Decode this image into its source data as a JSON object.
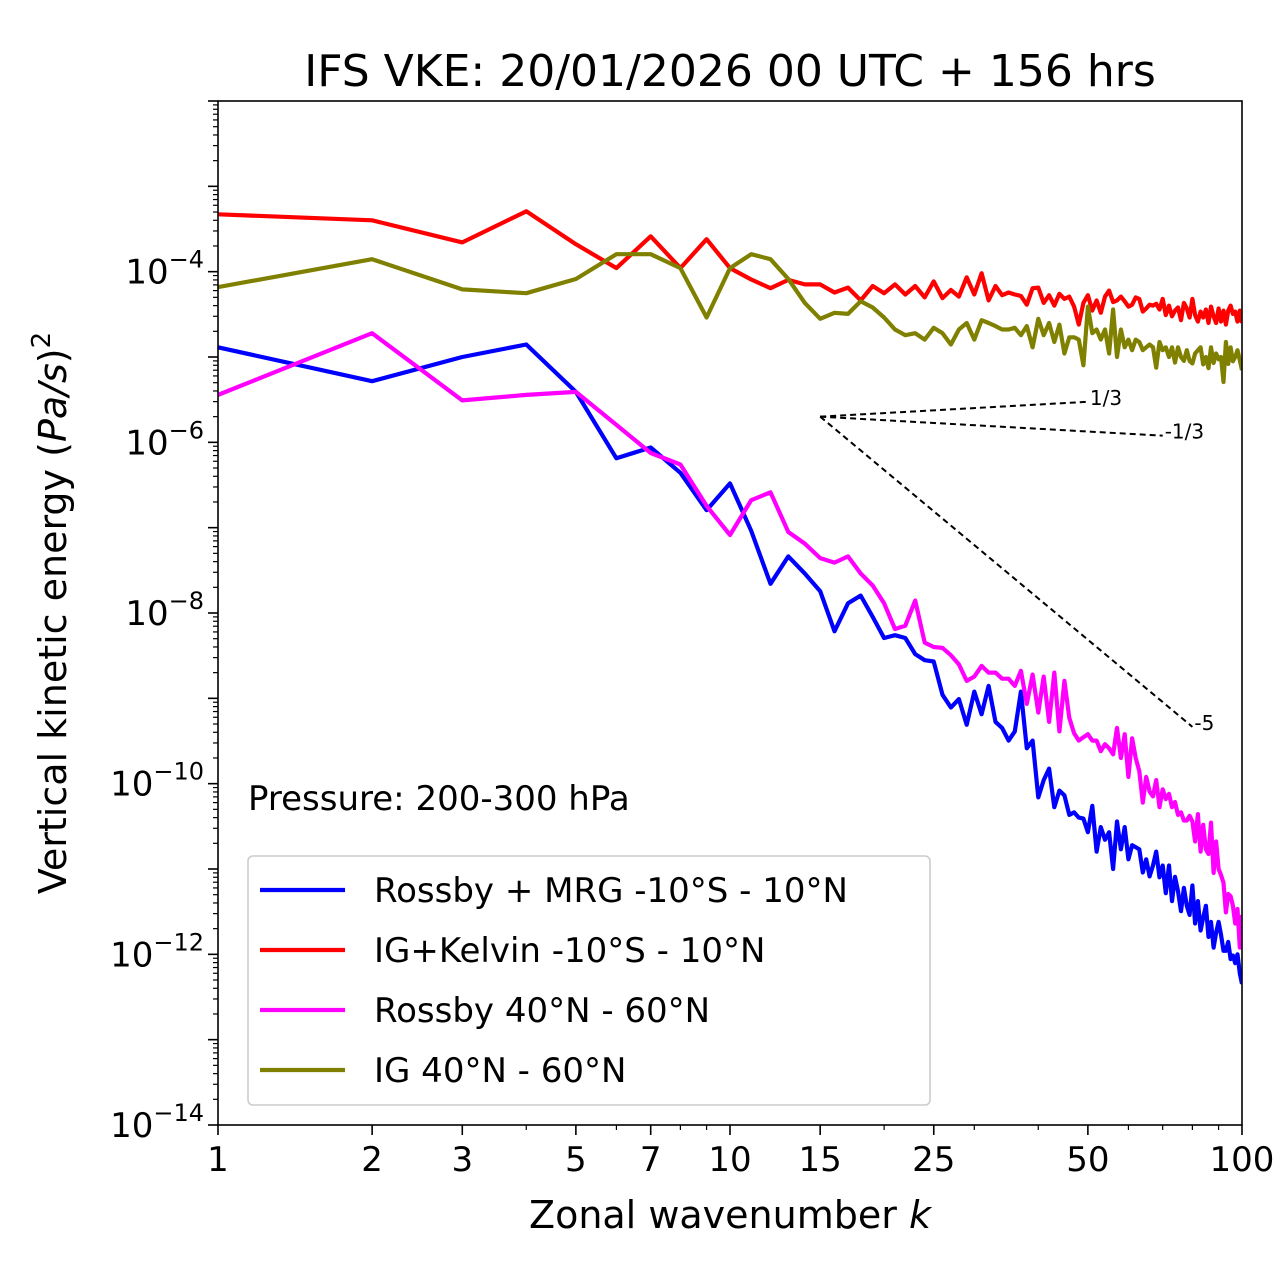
{
  "chart_data": {
    "type": "line",
    "title": "IFS VKE: 20/01/2026 00 UTC + 156 hrs",
    "xlabel": "Zonal wavenumber k",
    "ylabel": "Vertical kinetic energy (Pa/s)^2",
    "xscale": "log",
    "yscale": "log",
    "xlim": [
      1,
      100
    ],
    "ylim": [
      1e-14,
      0.01
    ],
    "xticks": [
      1,
      2,
      3,
      5,
      7,
      10,
      15,
      25,
      50,
      100
    ],
    "xtick_labels": [
      "1",
      "2",
      "3",
      "5",
      "7",
      "10",
      "15",
      "25",
      "50",
      "100"
    ],
    "yticks": [
      1e-14,
      1e-12,
      1e-10,
      1e-08,
      1e-06,
      0.0001
    ],
    "ytick_labels": [
      {
        "base": "10",
        "exp": "−14"
      },
      {
        "base": "10",
        "exp": "−12"
      },
      {
        "base": "10",
        "exp": "−10"
      },
      {
        "base": "10",
        "exp": "−8"
      },
      {
        "base": "10",
        "exp": "−6"
      },
      {
        "base": "10",
        "exp": "−4"
      }
    ],
    "annotation": "Pressure: 200-300 hPa",
    "legend_position": "lower-left",
    "series": [
      {
        "name": "Rossby + MRG -10°S - 10°N",
        "color": "#0000ff",
        "x": [
          1,
          2,
          3,
          4,
          5,
          6,
          7,
          8,
          9,
          10,
          11,
          12,
          13,
          14,
          15,
          16,
          17,
          18,
          19,
          20,
          21,
          22,
          23,
          24,
          25,
          26,
          27,
          28,
          29,
          30,
          31,
          32,
          33,
          34,
          35,
          36,
          37,
          38,
          39,
          40,
          41,
          42,
          43,
          44,
          45,
          46,
          47,
          48,
          49,
          50,
          51,
          52,
          53,
          54,
          55,
          56,
          57,
          58,
          59,
          60,
          61,
          62,
          63,
          64,
          65,
          66,
          67,
          68,
          69,
          70,
          71,
          72,
          73,
          74,
          75,
          76,
          77,
          78,
          79,
          80,
          81,
          82,
          83,
          84,
          85,
          86,
          87,
          88,
          89,
          90,
          91,
          92,
          93,
          94,
          95,
          96,
          97,
          98,
          99,
          100
        ],
        "y": [
          1.3e-05,
          5.2e-06,
          1e-05,
          1.4e-05,
          3.9e-06,
          6.5e-07,
          8.7e-07,
          4.4e-07,
          1.6e-07,
          3.3e-07,
          9.2e-08,
          2.2e-08,
          4.6e-08,
          2.9e-08,
          1.8e-08,
          6.1e-09,
          1.3e-08,
          1.6e-08,
          9e-09,
          5.1e-09,
          5.5e-09,
          5.1e-09,
          3.3e-09,
          2.8e-09,
          2.7e-09,
          1.1e-09,
          7.8e-10,
          9.8e-10,
          4.9e-10,
          1.2e-09,
          6.5e-10,
          1.4e-09,
          5.3e-10,
          4.5e-10,
          3.2e-10,
          4.1e-10,
          1.2e-09,
          2.6e-10,
          3.2e-10,
          6.9e-11,
          1.1e-10,
          1.5e-10,
          5.3e-11,
          8.3e-11,
          7.3e-11,
          4.3e-11,
          4.6e-11,
          4e-11,
          3.9e-11,
          2.7e-11,
          5.5e-11,
          1.6e-11,
          3.1e-11,
          2.2e-11,
          2.7e-11,
          1e-11,
          3.6e-11,
          1.7e-11,
          3.1e-11,
          1.3e-11,
          1.9e-11,
          1.8e-11,
          1.7e-11,
          9.1e-12,
          1.3e-11,
          8.2e-12,
          1.1e-11,
          1.6e-11,
          8e-12,
          1.1e-11,
          5.2e-12,
          1.1e-11,
          4.2e-12,
          8.1e-12,
          5.5e-12,
          3.2e-12,
          6e-12,
          3.7e-12,
          2.9e-12,
          6.4e-12,
          2.3e-12,
          4.2e-12,
          1.9e-12,
          2.7e-12,
          3.7e-12,
          1.6e-12,
          2.4e-12,
          1.2e-12,
          1.8e-12,
          2.4e-12,
          1.7e-12,
          1.1e-12,
          1.1e-12,
          1.4e-12,
          8.8e-13,
          9.7e-13,
          7.9e-13,
          1e-12,
          6e-13,
          4.5e-13
        ]
      },
      {
        "name": "IG+Kelvin -10°S - 10°N",
        "color": "#ff0000",
        "x": [
          1,
          2,
          3,
          4,
          5,
          6,
          7,
          8,
          9,
          10,
          11,
          12,
          13,
          14,
          15,
          16,
          17,
          18,
          19,
          20,
          21,
          22,
          23,
          24,
          25,
          26,
          27,
          28,
          29,
          30,
          31,
          32,
          33,
          34,
          35,
          36,
          37,
          38,
          39,
          40,
          41,
          42,
          43,
          44,
          45,
          46,
          47,
          48,
          49,
          50,
          51,
          52,
          53,
          54,
          55,
          56,
          57,
          58,
          59,
          60,
          61,
          62,
          63,
          64,
          65,
          66,
          67,
          68,
          69,
          70,
          71,
          72,
          73,
          74,
          75,
          76,
          77,
          78,
          79,
          80,
          81,
          82,
          83,
          84,
          85,
          86,
          87,
          88,
          89,
          90,
          91,
          92,
          93,
          94,
          95,
          96,
          97,
          98,
          99,
          100
        ],
        "y": [
          0.00047,
          0.0004,
          0.00022,
          0.00051,
          0.00021,
          0.00011,
          0.00026,
          0.00011,
          0.00024,
          0.00011,
          8.1e-05,
          6.4e-05,
          8e-05,
          7.1e-05,
          7.1e-05,
          5.7e-05,
          6.5e-05,
          4.6e-05,
          6.8e-05,
          5.6e-05,
          7.1e-05,
          5.4e-05,
          6.8e-05,
          5e-05,
          7.7e-05,
          4.9e-05,
          6.1e-05,
          5.1e-05,
          8.6e-05,
          5.4e-05,
          9.6e-05,
          4.6e-05,
          6.8e-05,
          5.3e-05,
          5.7e-05,
          5.4e-05,
          5.2e-05,
          4.1e-05,
          6.4e-05,
          6.5e-05,
          4.3e-05,
          5.3e-05,
          4e-05,
          5.5e-05,
          4.8e-05,
          5.1e-05,
          3.9e-05,
          2.4e-05,
          4.3e-05,
          5.3e-05,
          3.5e-05,
          4.6e-05,
          3.3e-05,
          5.1e-05,
          6e-05,
          4.4e-05,
          4.6e-05,
          5.1e-05,
          4.5e-05,
          3.9e-05,
          4.1e-05,
          5e-05,
          4.8e-05,
          3.4e-05,
          3.7e-05,
          4.1e-05,
          4e-05,
          4.2e-05,
          3.6e-05,
          4.8e-05,
          3.1e-05,
          4e-05,
          3e-05,
          3.5e-05,
          3.8e-05,
          2.7e-05,
          4.3e-05,
          3.7e-05,
          2.9e-05,
          4.8e-05,
          3.1e-05,
          2.6e-05,
          3.4e-05,
          2.9e-05,
          3.6e-05,
          2.5e-05,
          3.9e-05,
          3e-05,
          2.5e-05,
          3.7e-05,
          2.6e-05,
          3.5e-05,
          2.4e-05,
          3.5e-05,
          4e-05,
          3.2e-05,
          3.4e-05,
          2.6e-05,
          3.5e-05,
          2.5e-05
        ]
      },
      {
        "name": "Rossby 40°N - 60°N",
        "color": "#ff00ff",
        "x": [
          1,
          2,
          3,
          4,
          5,
          6,
          7,
          8,
          9,
          10,
          11,
          12,
          13,
          14,
          15,
          16,
          17,
          18,
          19,
          20,
          21,
          22,
          23,
          24,
          25,
          26,
          27,
          28,
          29,
          30,
          31,
          32,
          33,
          34,
          35,
          36,
          37,
          38,
          39,
          40,
          41,
          42,
          43,
          44,
          45,
          46,
          47,
          48,
          49,
          50,
          51,
          52,
          53,
          54,
          55,
          56,
          57,
          58,
          59,
          60,
          61,
          62,
          63,
          64,
          65,
          66,
          67,
          68,
          69,
          70,
          71,
          72,
          73,
          74,
          75,
          76,
          77,
          78,
          79,
          80,
          81,
          82,
          83,
          84,
          85,
          86,
          87,
          88,
          89,
          90,
          91,
          92,
          93,
          94,
          95,
          96,
          97,
          98,
          99,
          100
        ],
        "y": [
          3.6e-06,
          1.9e-05,
          3.1e-06,
          3.6e-06,
          3.9e-06,
          1.6e-06,
          7.5e-07,
          5.5e-07,
          1.8e-07,
          8.2e-08,
          2.1e-07,
          2.6e-07,
          8.9e-08,
          6.5e-08,
          4.4e-08,
          3.9e-08,
          4.6e-08,
          2.9e-08,
          2.1e-08,
          1.3e-08,
          6.5e-09,
          7.1e-09,
          1.4e-08,
          4.5e-09,
          4e-09,
          3.9e-09,
          3.2e-09,
          2.5e-09,
          1.6e-09,
          1.8e-09,
          2.4e-09,
          2e-09,
          2e-09,
          1.7e-09,
          1.7e-09,
          1.4e-09,
          2.1e-09,
          8.6e-10,
          1.9e-09,
          6.8e-10,
          1.8e-09,
          5.3e-10,
          2e-09,
          4.1e-10,
          1.6e-09,
          5.9e-10,
          3.9e-10,
          3.2e-10,
          3.5e-10,
          3.8e-10,
          3.2e-10,
          3.2e-10,
          2.4e-10,
          2.9e-10,
          2.6e-10,
          2.2e-10,
          4.5e-10,
          2e-10,
          3.8e-10,
          1.2e-10,
          3.4e-10,
          2e-10,
          1.4e-10,
          6e-11,
          1.2e-10,
          8.1e-11,
          7.1e-11,
          1.1e-10,
          5.3e-11,
          8.6e-11,
          6.6e-11,
          7.6e-11,
          5.3e-11,
          6.1e-11,
          4.3e-11,
          4.6e-11,
          3.7e-11,
          3.7e-11,
          4.2e-11,
          3.6e-11,
          2.1e-11,
          4.4e-11,
          1.6e-11,
          3.3e-11,
          1.7e-11,
          1.5e-11,
          3.5e-11,
          9e-12,
          2.1e-11,
          1e-11,
          8.5e-12,
          6.9e-12,
          3.1e-12,
          5.1e-12,
          4.8e-12,
          3.7e-12,
          2.3e-12,
          3.4e-12,
          1.2e-12,
          2.9e-12
        ]
      },
      {
        "name": "IG 40°N - 60°N",
        "color": "#808000",
        "x": [
          1,
          2,
          3,
          4,
          5,
          6,
          7,
          8,
          9,
          10,
          11,
          12,
          13,
          14,
          15,
          16,
          17,
          18,
          19,
          20,
          21,
          22,
          23,
          24,
          25,
          26,
          27,
          28,
          29,
          30,
          31,
          32,
          33,
          34,
          35,
          36,
          37,
          38,
          39,
          40,
          41,
          42,
          43,
          44,
          45,
          46,
          47,
          48,
          49,
          50,
          51,
          52,
          53,
          54,
          55,
          56,
          57,
          58,
          59,
          60,
          61,
          62,
          63,
          64,
          65,
          66,
          67,
          68,
          69,
          70,
          71,
          72,
          73,
          74,
          75,
          76,
          77,
          78,
          79,
          80,
          81,
          82,
          83,
          84,
          85,
          86,
          87,
          88,
          89,
          90,
          91,
          92,
          93,
          94,
          95,
          96,
          97,
          98,
          99,
          100
        ],
        "y": [
          6.6e-05,
          0.00014,
          6.2e-05,
          5.6e-05,
          8.2e-05,
          0.00016,
          0.00016,
          0.00011,
          2.9e-05,
          0.00011,
          0.00016,
          0.00014,
          8.2e-05,
          4.3e-05,
          2.8e-05,
          3.3e-05,
          3.2e-05,
          4.5e-05,
          3.8e-05,
          2.9e-05,
          2.1e-05,
          1.8e-05,
          1.9e-05,
          1.6e-05,
          2.2e-05,
          1.9e-05,
          1.4e-05,
          2.1e-05,
          2.5e-05,
          1.6e-05,
          2.7e-05,
          2.5e-05,
          2.3e-05,
          2.1e-05,
          2.1e-05,
          2.2e-05,
          1.8e-05,
          2.3e-05,
          1.3e-05,
          2.8e-05,
          1.8e-05,
          2.5e-05,
          1.5e-05,
          2.4e-05,
          1.1e-05,
          1.7e-05,
          1.7e-05,
          1.6e-05,
          8e-06,
          3.9e-05,
          1.9e-05,
          2.1e-05,
          1.6e-05,
          2.1e-05,
          1.1e-05,
          3.6e-05,
          1e-05,
          2.1e-05,
          1.3e-05,
          1.6e-05,
          1.2e-05,
          1.6e-05,
          1.5e-05,
          1.2e-05,
          1.3e-05,
          1.4e-05,
          1.3e-05,
          7.5e-06,
          1.5e-05,
          1.2e-05,
          1.3e-05,
          1e-05,
          1.3e-05,
          8.6e-06,
          1.3e-05,
          1e-05,
          9e-06,
          1.2e-05,
          9e-06,
          8.4e-06,
          1.1e-05,
          1.2e-05,
          1.3e-05,
          8.2e-06,
          1e-05,
          7.4e-06,
          1.3e-05,
          8.5e-06,
          1.1e-05,
          9.4e-06,
          1e-05,
          5.1e-06,
          1.5e-05,
          8.3e-06,
          1.3e-05,
          8.9e-06,
          1e-05,
          1.2e-05,
          9.2e-06,
          7e-06
        ]
      }
    ],
    "reference_lines": [
      {
        "label": "1/3",
        "slope": 0.3333,
        "x0": 15,
        "y0": 2e-06,
        "x1": 50,
        "color": "#000000",
        "style": "dashed"
      },
      {
        "label": "-1/3",
        "slope": -0.3333,
        "x0": 15,
        "y0": 2e-06,
        "x1": 70,
        "color": "#000000",
        "style": "dashed"
      },
      {
        "label": "-5",
        "slope": -5,
        "x0": 15,
        "y0": 2e-06,
        "x1": 80,
        "color": "#000000",
        "style": "dashed"
      }
    ]
  }
}
